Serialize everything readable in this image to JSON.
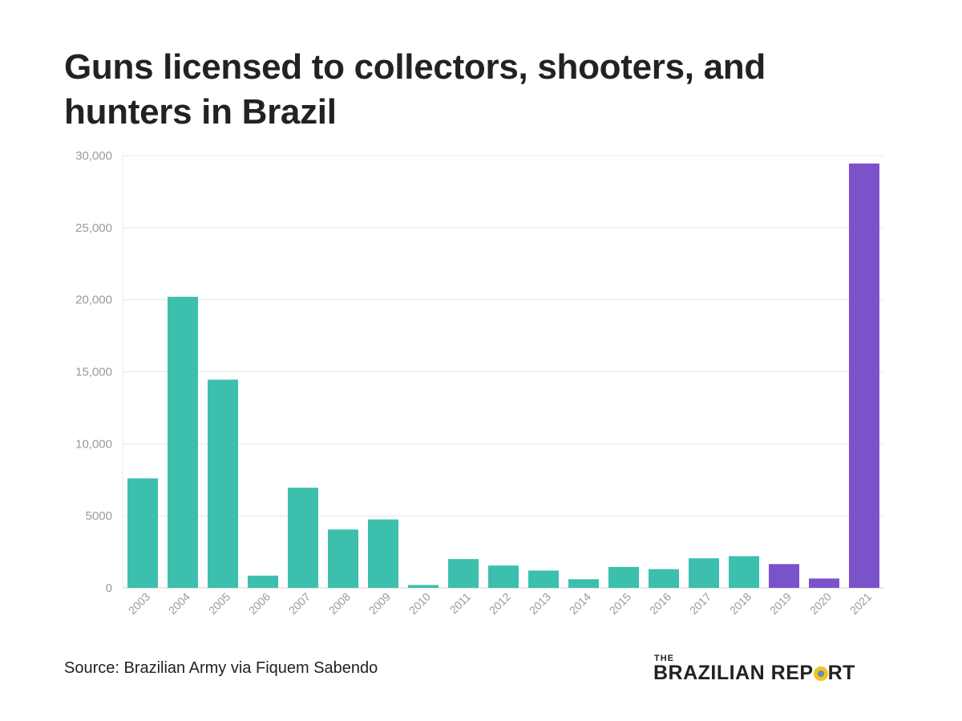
{
  "title": "Guns licensed to collectors, shooters, and hunters in Brazil",
  "source": "Source: Brazilian Army via Fiquem Sabendo",
  "logo": {
    "small": "THE",
    "name_part1": "BRAZILIAN REP",
    "name_part2": "RT"
  },
  "colors": {
    "base": "#3dbfae",
    "highlight": "#7b52c9",
    "grid": "#e8e8e8",
    "tick": "#9a9a9a"
  },
  "chart_data": {
    "type": "bar",
    "title": "Guns licensed to collectors, shooters, and hunters in Brazil",
    "xlabel": "",
    "ylabel": "",
    "ylim": [
      0,
      30000
    ],
    "yticks": [
      0,
      5000,
      10000,
      15000,
      20000,
      25000,
      30000
    ],
    "ytick_labels": [
      "0",
      "5000",
      "10,000",
      "15,000",
      "20,000",
      "25,000",
      "30,000"
    ],
    "grid": true,
    "categories": [
      "2003",
      "2004",
      "2005",
      "2006",
      "2007",
      "2008",
      "2009",
      "2010",
      "2011",
      "2012",
      "2013",
      "2014",
      "2015",
      "2016",
      "2017",
      "2018",
      "2019",
      "2020",
      "2021"
    ],
    "values": [
      7600,
      20200,
      14450,
      850,
      6950,
      4050,
      4750,
      200,
      2000,
      1550,
      1200,
      600,
      1450,
      1300,
      2050,
      2200,
      1650,
      650,
      29450
    ],
    "highlighted": [
      "2019",
      "2020",
      "2021"
    ]
  }
}
